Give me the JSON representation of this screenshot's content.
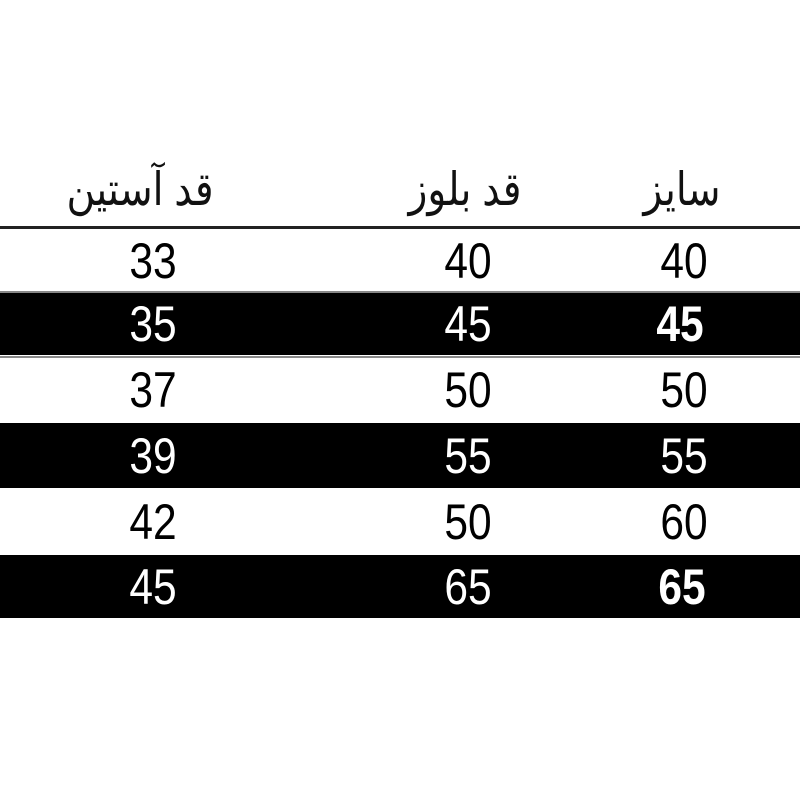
{
  "headers": {
    "sleeve_length": "قد آستین",
    "blouse_length": "قد بلوز",
    "size": "سایز"
  },
  "rows": [
    {
      "sleeve": "33",
      "blouse": "40",
      "size": "40"
    },
    {
      "sleeve": "35",
      "blouse": "45",
      "size": "45"
    },
    {
      "sleeve": "37",
      "blouse": "50",
      "size": "50"
    },
    {
      "sleeve": "39",
      "blouse": "55",
      "size": "55"
    },
    {
      "sleeve": "42",
      "blouse": "50",
      "size": "60"
    },
    {
      "sleeve": "45",
      "blouse": "65",
      "size": "65"
    }
  ],
  "colors": {
    "dark_row": "#000000",
    "light_row": "#ffffff"
  }
}
